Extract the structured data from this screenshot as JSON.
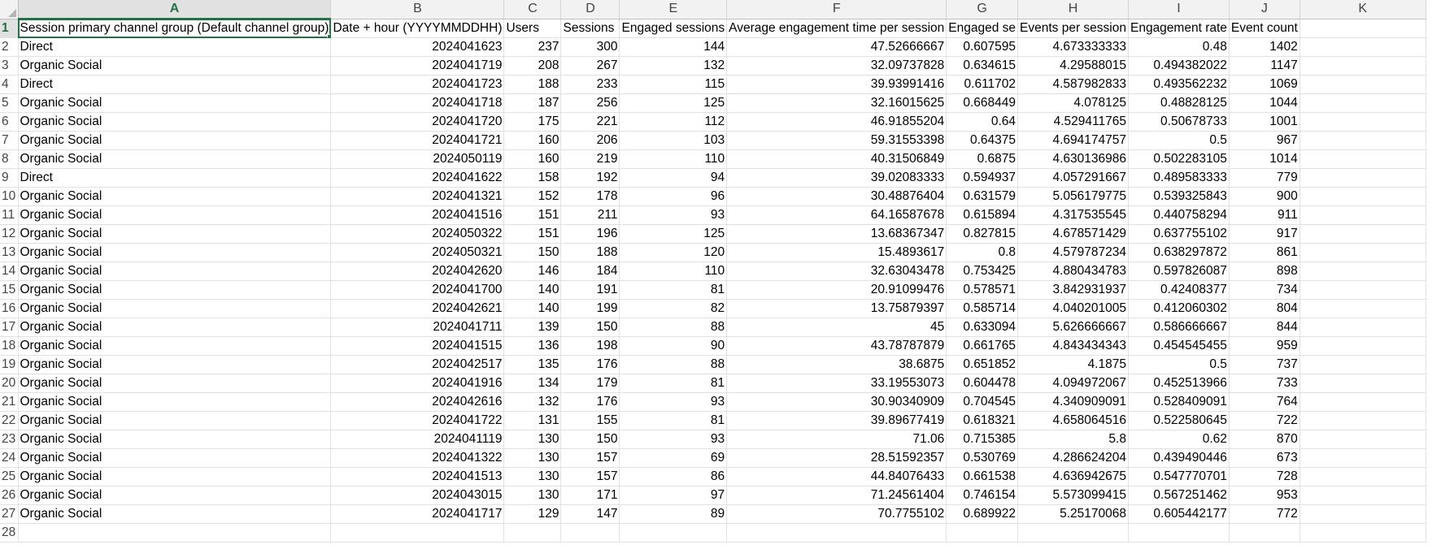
{
  "columns": [
    "A",
    "B",
    "C",
    "D",
    "E",
    "F",
    "G",
    "H",
    "I",
    "J",
    "K"
  ],
  "active_column": "A",
  "active_row": 1,
  "header_row": [
    "Session primary channel group (Default channel group)",
    "Date + hour (YYYYMMDDHH)",
    "Users",
    "Sessions",
    "Engaged sessions",
    "Average engagement time per session",
    "Engaged se",
    "Events per session",
    "Engagement rate",
    "Event count",
    ""
  ],
  "rows": [
    {
      "n": "2",
      "c": [
        "Direct",
        "2024041623",
        "237",
        "300",
        "144",
        "47.52666667",
        "0.607595",
        "4.673333333",
        "0.48",
        "1402",
        ""
      ]
    },
    {
      "n": "3",
      "c": [
        "Organic Social",
        "2024041719",
        "208",
        "267",
        "132",
        "32.09737828",
        "0.634615",
        "4.29588015",
        "0.494382022",
        "1147",
        ""
      ]
    },
    {
      "n": "4",
      "c": [
        "Direct",
        "2024041723",
        "188",
        "233",
        "115",
        "39.93991416",
        "0.611702",
        "4.587982833",
        "0.493562232",
        "1069",
        ""
      ]
    },
    {
      "n": "5",
      "c": [
        "Organic Social",
        "2024041718",
        "187",
        "256",
        "125",
        "32.16015625",
        "0.668449",
        "4.078125",
        "0.48828125",
        "1044",
        ""
      ]
    },
    {
      "n": "6",
      "c": [
        "Organic Social",
        "2024041720",
        "175",
        "221",
        "112",
        "46.91855204",
        "0.64",
        "4.529411765",
        "0.50678733",
        "1001",
        ""
      ]
    },
    {
      "n": "7",
      "c": [
        "Organic Social",
        "2024041721",
        "160",
        "206",
        "103",
        "59.31553398",
        "0.64375",
        "4.694174757",
        "0.5",
        "967",
        ""
      ]
    },
    {
      "n": "8",
      "c": [
        "Organic Social",
        "2024050119",
        "160",
        "219",
        "110",
        "40.31506849",
        "0.6875",
        "4.630136986",
        "0.502283105",
        "1014",
        ""
      ]
    },
    {
      "n": "9",
      "c": [
        "Direct",
        "2024041622",
        "158",
        "192",
        "94",
        "39.02083333",
        "0.594937",
        "4.057291667",
        "0.489583333",
        "779",
        ""
      ]
    },
    {
      "n": "10",
      "c": [
        "Organic Social",
        "2024041321",
        "152",
        "178",
        "96",
        "30.48876404",
        "0.631579",
        "5.056179775",
        "0.539325843",
        "900",
        ""
      ]
    },
    {
      "n": "11",
      "c": [
        "Organic Social",
        "2024041516",
        "151",
        "211",
        "93",
        "64.16587678",
        "0.615894",
        "4.317535545",
        "0.440758294",
        "911",
        ""
      ]
    },
    {
      "n": "12",
      "c": [
        "Organic Social",
        "2024050322",
        "151",
        "196",
        "125",
        "13.68367347",
        "0.827815",
        "4.678571429",
        "0.637755102",
        "917",
        ""
      ]
    },
    {
      "n": "13",
      "c": [
        "Organic Social",
        "2024050321",
        "150",
        "188",
        "120",
        "15.4893617",
        "0.8",
        "4.579787234",
        "0.638297872",
        "861",
        ""
      ]
    },
    {
      "n": "14",
      "c": [
        "Organic Social",
        "2024042620",
        "146",
        "184",
        "110",
        "32.63043478",
        "0.753425",
        "4.880434783",
        "0.597826087",
        "898",
        ""
      ]
    },
    {
      "n": "15",
      "c": [
        "Organic Social",
        "2024041700",
        "140",
        "191",
        "81",
        "20.91099476",
        "0.578571",
        "3.842931937",
        "0.42408377",
        "734",
        ""
      ]
    },
    {
      "n": "16",
      "c": [
        "Organic Social",
        "2024042621",
        "140",
        "199",
        "82",
        "13.75879397",
        "0.585714",
        "4.040201005",
        "0.412060302",
        "804",
        ""
      ]
    },
    {
      "n": "17",
      "c": [
        "Organic Social",
        "2024041711",
        "139",
        "150",
        "88",
        "45",
        "0.633094",
        "5.626666667",
        "0.586666667",
        "844",
        ""
      ]
    },
    {
      "n": "18",
      "c": [
        "Organic Social",
        "2024041515",
        "136",
        "198",
        "90",
        "43.78787879",
        "0.661765",
        "4.843434343",
        "0.454545455",
        "959",
        ""
      ]
    },
    {
      "n": "19",
      "c": [
        "Organic Social",
        "2024042517",
        "135",
        "176",
        "88",
        "38.6875",
        "0.651852",
        "4.1875",
        "0.5",
        "737",
        ""
      ]
    },
    {
      "n": "20",
      "c": [
        "Organic Social",
        "2024041916",
        "134",
        "179",
        "81",
        "33.19553073",
        "0.604478",
        "4.094972067",
        "0.452513966",
        "733",
        ""
      ]
    },
    {
      "n": "21",
      "c": [
        "Organic Social",
        "2024042616",
        "132",
        "176",
        "93",
        "30.90340909",
        "0.704545",
        "4.340909091",
        "0.528409091",
        "764",
        ""
      ]
    },
    {
      "n": "22",
      "c": [
        "Organic Social",
        "2024041722",
        "131",
        "155",
        "81",
        "39.89677419",
        "0.618321",
        "4.658064516",
        "0.522580645",
        "722",
        ""
      ]
    },
    {
      "n": "23",
      "c": [
        "Organic Social",
        "2024041119",
        "130",
        "150",
        "93",
        "71.06",
        "0.715385",
        "5.8",
        "0.62",
        "870",
        ""
      ]
    },
    {
      "n": "24",
      "c": [
        "Organic Social",
        "2024041322",
        "130",
        "157",
        "69",
        "28.51592357",
        "0.530769",
        "4.286624204",
        "0.439490446",
        "673",
        ""
      ]
    },
    {
      "n": "25",
      "c": [
        "Organic Social",
        "2024041513",
        "130",
        "157",
        "86",
        "44.84076433",
        "0.661538",
        "4.636942675",
        "0.547770701",
        "728",
        ""
      ]
    },
    {
      "n": "26",
      "c": [
        "Organic Social",
        "2024043015",
        "130",
        "171",
        "97",
        "71.24561404",
        "0.746154",
        "5.573099415",
        "0.567251462",
        "953",
        ""
      ]
    },
    {
      "n": "27",
      "c": [
        "Organic Social",
        "2024041717",
        "129",
        "147",
        "89",
        "70.7755102",
        "0.689922",
        "5.25170068",
        "0.605442177",
        "772",
        ""
      ]
    },
    {
      "n": "28",
      "c": [
        "",
        "",
        "",
        "",
        "",
        "",
        "",
        "",
        "",
        "",
        ""
      ]
    }
  ],
  "colors": {
    "accent": "#217346",
    "gridline": "#e1e1e1",
    "header_bg": "#f2f2f2"
  }
}
